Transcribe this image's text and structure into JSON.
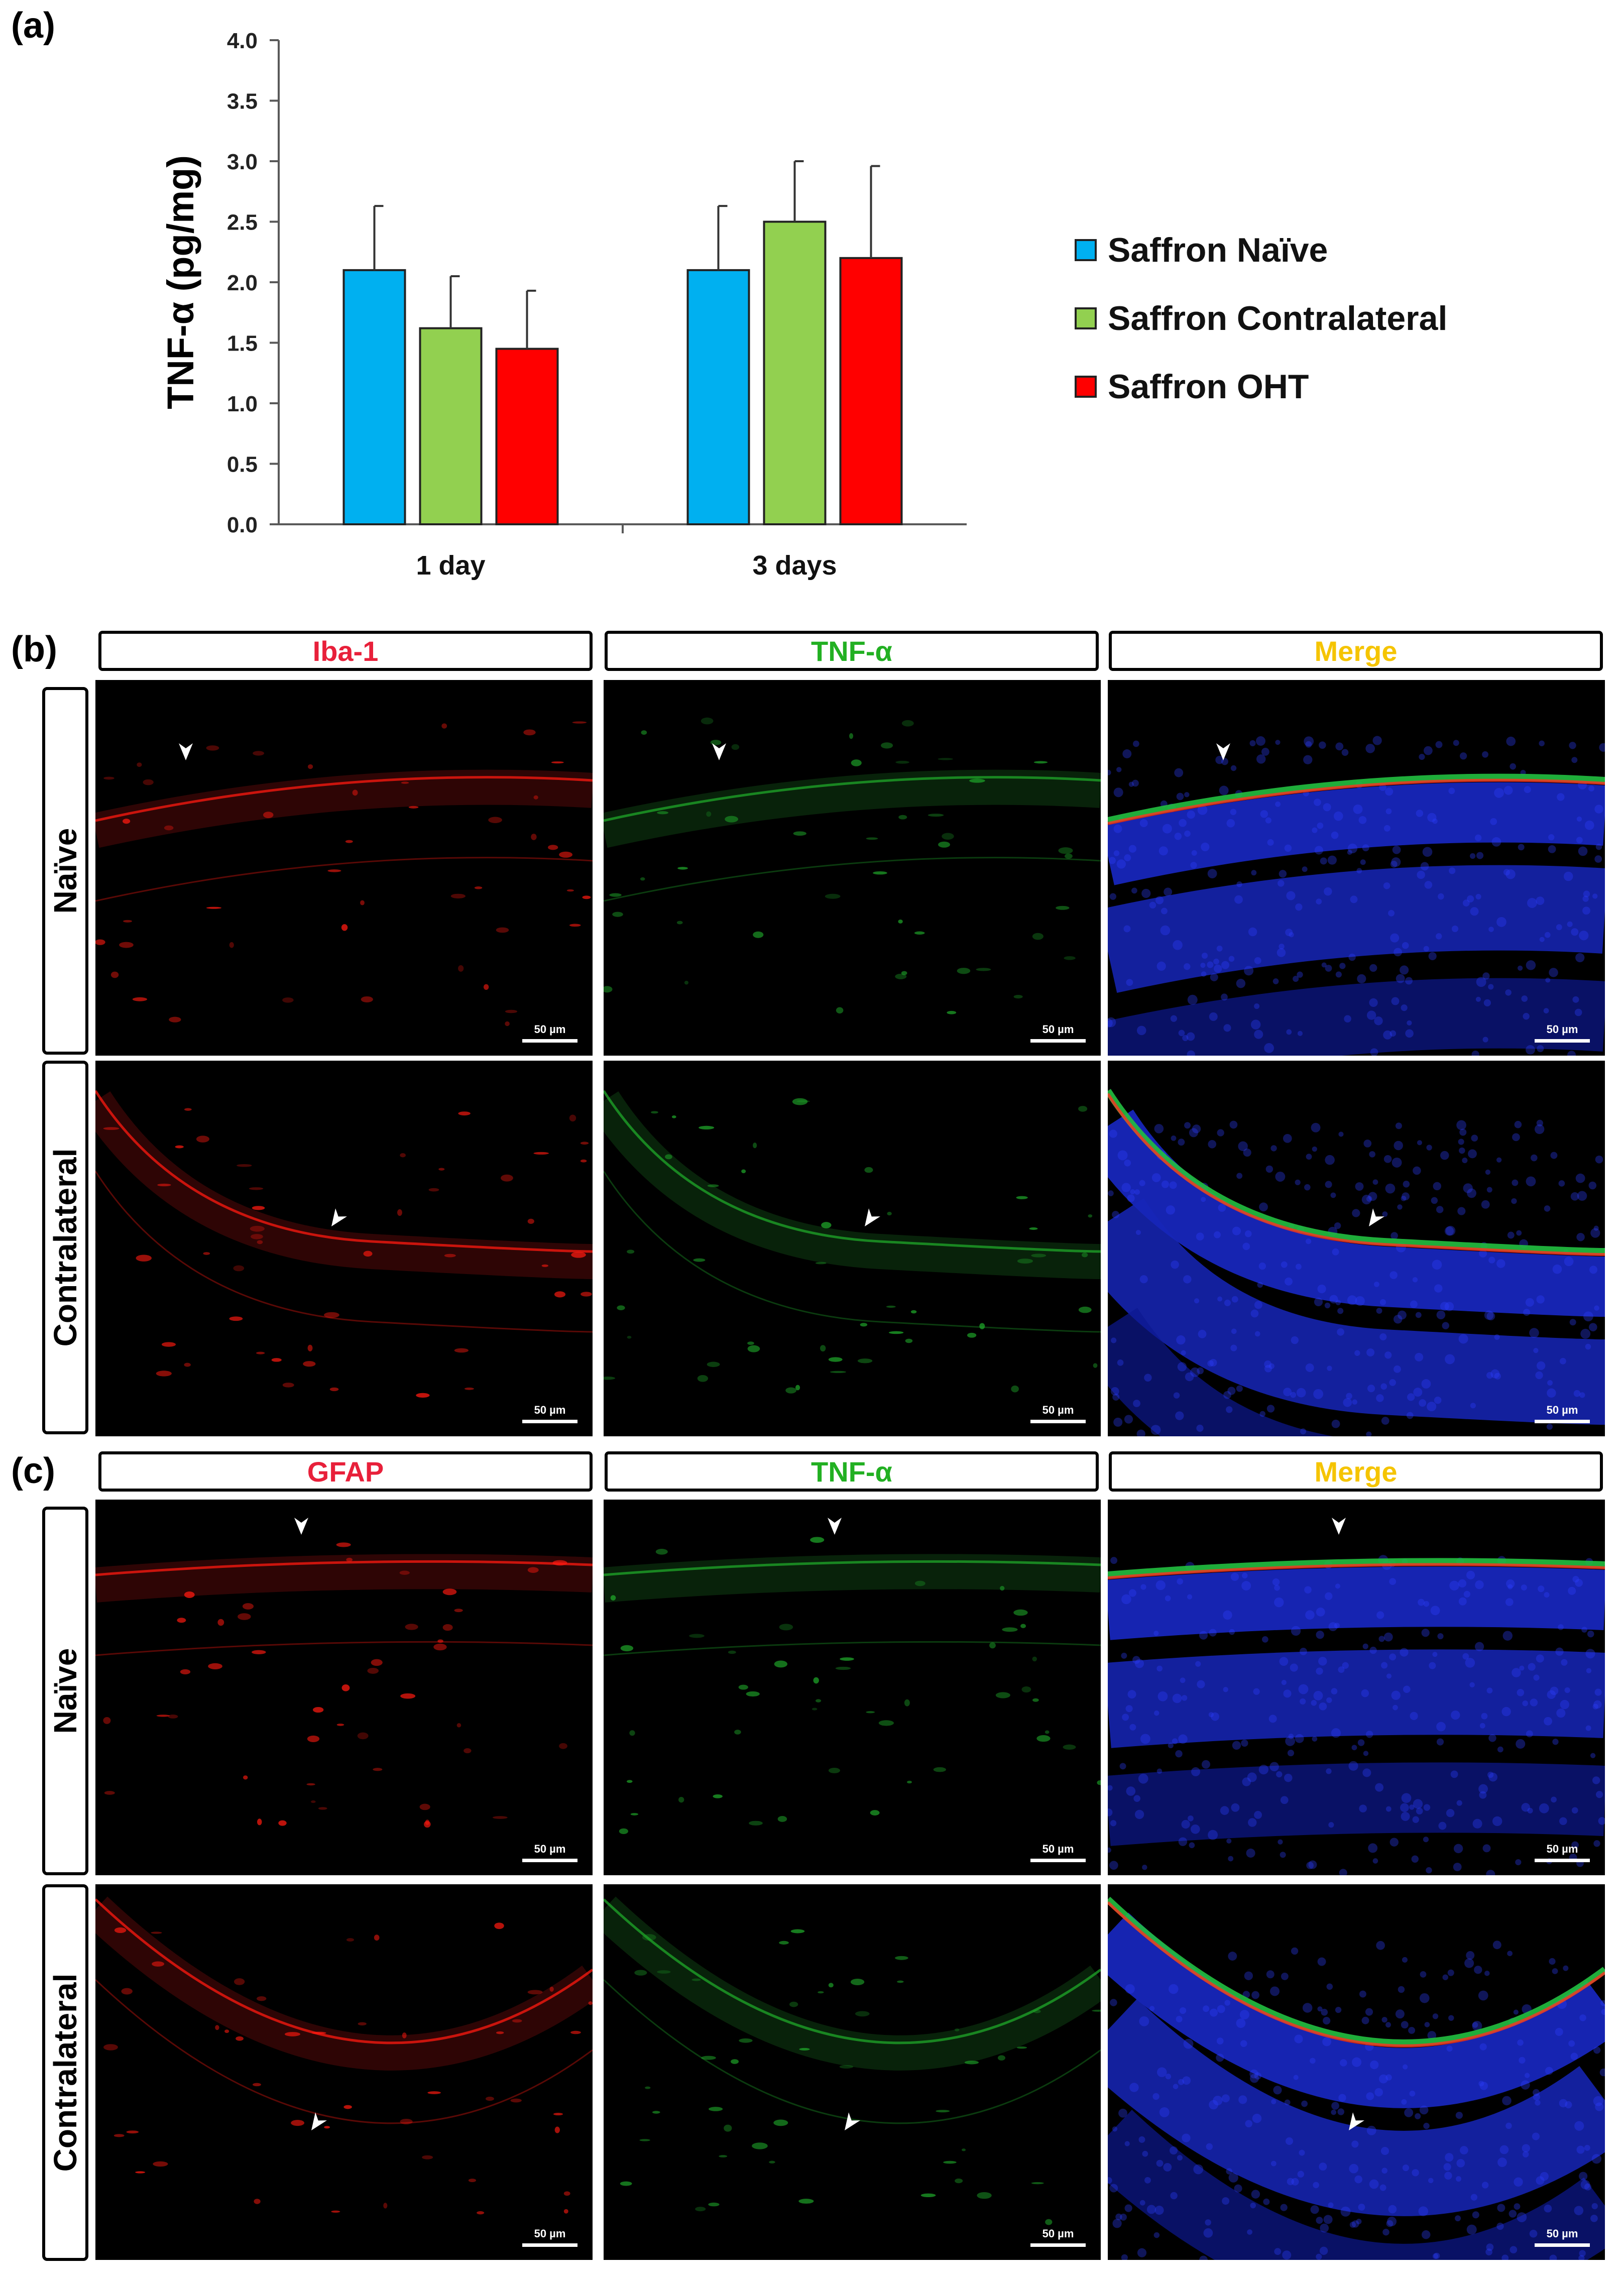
{
  "panels": {
    "a": "(a)",
    "b": "(b)",
    "c": "(c)"
  },
  "chart_data": {
    "type": "bar",
    "categories": [
      "1 day",
      "3 days"
    ],
    "ylabel": "TNF-α (pg/mg)",
    "ylim": [
      0,
      4.0
    ],
    "yticks": [
      "0.0",
      "0.5",
      "1.0",
      "1.5",
      "2.0",
      "2.5",
      "3.0",
      "3.5",
      "4.0"
    ],
    "series": [
      {
        "name": "Saffron Naïve",
        "color": "#00b0f0",
        "values": [
          2.1,
          2.1
        ],
        "errors": [
          0.53,
          0.53
        ]
      },
      {
        "name": "Saffron Contralateral",
        "color": "#92d050",
        "values": [
          1.62,
          2.5
        ],
        "errors": [
          0.43,
          0.5
        ]
      },
      {
        "name": "Saffron OHT",
        "color": "#ff0000",
        "values": [
          1.45,
          2.2
        ],
        "errors": [
          0.48,
          0.76
        ]
      }
    ],
    "legend_position": "right",
    "grid": false
  },
  "panel_b": {
    "columns": [
      "Iba-1",
      "TNF-α",
      "Merge"
    ],
    "rows": [
      "Naïve",
      "Contralateral"
    ],
    "scalebar": "50 µm"
  },
  "panel_c": {
    "columns": [
      "GFAP",
      "TNF-α",
      "Merge"
    ],
    "rows": [
      "Naïve",
      "Contralateral"
    ],
    "scalebar": "50 µm"
  },
  "colors": {
    "red_label": "#e8203a",
    "green_label": "#22b022",
    "merge_label": "#f5c400"
  }
}
